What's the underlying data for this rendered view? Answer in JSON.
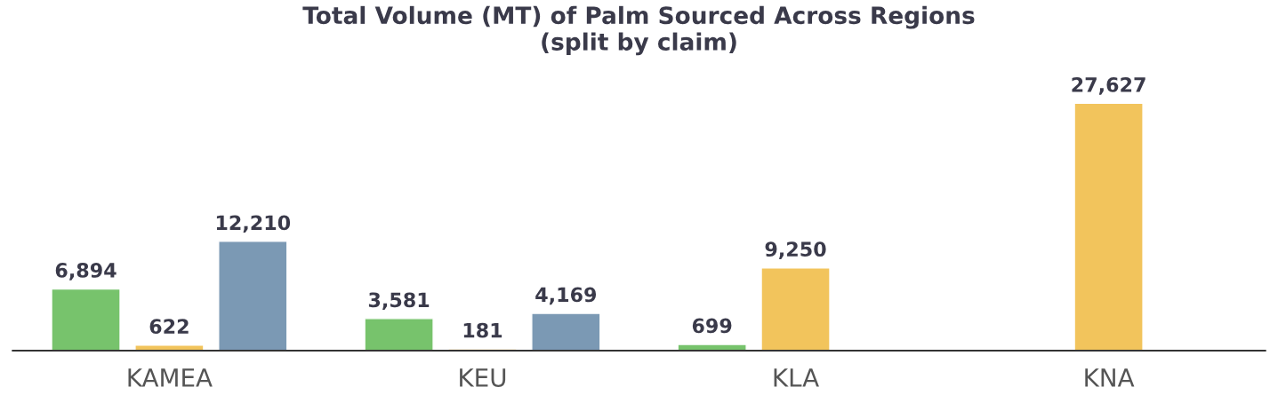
{
  "chart_data": {
    "type": "bar",
    "title": "Total Volume (MT) of Palm Sourced Across Regions\n(split by claim)",
    "categories": [
      "KAMEA",
      "KEU",
      "KLA",
      "KNA"
    ],
    "series": [
      {
        "color": "#77c36c",
        "values": [
          6894,
          3581,
          699,
          null
        ],
        "value_labels": [
          "6,894",
          "3,581",
          "699",
          null
        ]
      },
      {
        "color": "#f2c45c",
        "values": [
          622,
          181,
          9250,
          27627
        ],
        "value_labels": [
          "622",
          "181",
          "9,250",
          "27,627"
        ]
      },
      {
        "color": "#7b99b4",
        "values": [
          12210,
          4169,
          null,
          null
        ],
        "value_labels": [
          "12,210",
          "4,169",
          null,
          null
        ]
      }
    ]
  }
}
